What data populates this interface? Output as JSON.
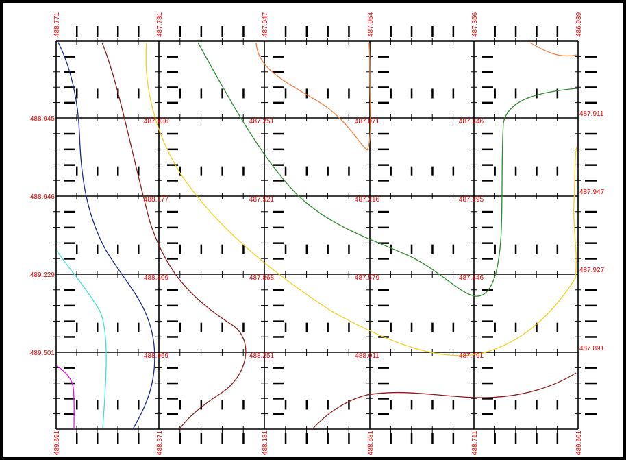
{
  "colors": {
    "grid": "#000000",
    "elevation_label": "#ff0000",
    "contours": [
      "#ff00ff",
      "#40e0d0",
      "#1c2a8a",
      "#8b1a1a",
      "#f5d020",
      "#2e8b2e",
      "#f08040"
    ]
  },
  "elevations": {
    "top": [
      "488.771",
      "487.781",
      "487.047",
      "487.064",
      "487.356",
      "486.939"
    ],
    "row1": [
      "488.945",
      "487.936",
      "487.251",
      "487.071",
      "487.346",
      "487.911"
    ],
    "row2": [
      "488.946",
      "488.177",
      "487.521",
      "487.216",
      "487.295",
      "487.947"
    ],
    "row3": [
      "489.229",
      "488.409",
      "487.868",
      "487.579",
      "487.446",
      "487.927"
    ],
    "row4": [
      "489.501",
      "488.969",
      "488.251",
      "488.011",
      "487.791",
      "487.891"
    ],
    "bottom": [
      "489.691",
      "488.371",
      "488.181",
      "488.581",
      "488.711",
      "489.601"
    ]
  },
  "contour_icons": [
    "contour-magenta",
    "contour-cyan",
    "contour-navy",
    "contour-maroon",
    "contour-yellow",
    "contour-green",
    "contour-orange"
  ]
}
